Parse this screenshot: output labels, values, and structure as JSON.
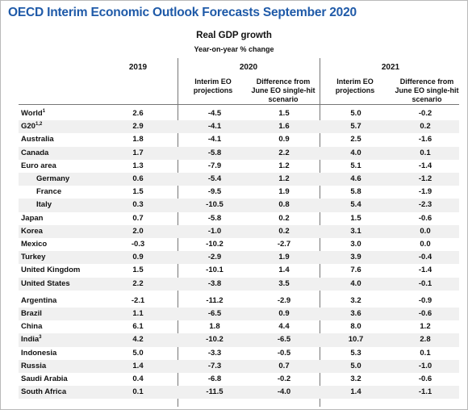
{
  "title": "OECD Interim Economic Outlook Forecasts September 2020",
  "table_title": "Real GDP growth",
  "table_subtitle": "Year-on-year % change",
  "years": [
    "2019",
    "2020",
    "2021"
  ],
  "columns": {
    "interim": "Interim EO projections",
    "difference": "Difference from June EO single-hit scenario"
  },
  "rows": [
    {
      "name": "World",
      "sup": "1",
      "v2019": "2.6",
      "i2020": "-4.5",
      "d2020": "1.5",
      "i2021": "5.0",
      "d2021": "-0.2"
    },
    {
      "name": "G20",
      "sup": "1,2",
      "v2019": "2.9",
      "i2020": "-4.1",
      "d2020": "1.6",
      "i2021": "5.7",
      "d2021": "0.2"
    },
    {
      "name": "Australia",
      "sup": "",
      "v2019": "1.8",
      "i2020": "-4.1",
      "d2020": "0.9",
      "i2021": "2.5",
      "d2021": "-1.6"
    },
    {
      "name": "Canada",
      "sup": "",
      "v2019": "1.7",
      "i2020": "-5.8",
      "d2020": "2.2",
      "i2021": "4.0",
      "d2021": "0.1"
    },
    {
      "name": "Euro area",
      "sup": "",
      "v2019": "1.3",
      "i2020": "-7.9",
      "d2020": "1.2",
      "i2021": "5.1",
      "d2021": "-1.4"
    },
    {
      "name": "Germany",
      "sup": "",
      "v2019": "0.6",
      "i2020": "-5.4",
      "d2020": "1.2",
      "i2021": "4.6",
      "d2021": "-1.2"
    },
    {
      "name": "France",
      "sup": "",
      "v2019": "1.5",
      "i2020": "-9.5",
      "d2020": "1.9",
      "i2021": "5.8",
      "d2021": "-1.9"
    },
    {
      "name": "Italy",
      "sup": "",
      "v2019": "0.3",
      "i2020": "-10.5",
      "d2020": "0.8",
      "i2021": "5.4",
      "d2021": "-2.3"
    },
    {
      "name": "Japan",
      "sup": "",
      "v2019": "0.7",
      "i2020": "-5.8",
      "d2020": "0.2",
      "i2021": "1.5",
      "d2021": "-0.6"
    },
    {
      "name": "Korea",
      "sup": "",
      "v2019": "2.0",
      "i2020": "-1.0",
      "d2020": "0.2",
      "i2021": "3.1",
      "d2021": "0.0"
    },
    {
      "name": "Mexico",
      "sup": "",
      "v2019": "-0.3",
      "i2020": "-10.2",
      "d2020": "-2.7",
      "i2021": "3.0",
      "d2021": "0.0"
    },
    {
      "name": "Turkey",
      "sup": "",
      "v2019": "0.9",
      "i2020": "-2.9",
      "d2020": "1.9",
      "i2021": "3.9",
      "d2021": "-0.4"
    },
    {
      "name": "United Kingdom",
      "sup": "",
      "v2019": "1.5",
      "i2020": "-10.1",
      "d2020": "1.4",
      "i2021": "7.6",
      "d2021": "-1.4"
    },
    {
      "name": "United States",
      "sup": "",
      "v2019": "2.2",
      "i2020": "-3.8",
      "d2020": "3.5",
      "i2021": "4.0",
      "d2021": "-0.1"
    },
    {
      "name": "Argentina",
      "sup": "",
      "v2019": "-2.1",
      "i2020": "-11.2",
      "d2020": "-2.9",
      "i2021": "3.2",
      "d2021": "-0.9"
    },
    {
      "name": "Brazil",
      "sup": "",
      "v2019": "1.1",
      "i2020": "-6.5",
      "d2020": "0.9",
      "i2021": "3.6",
      "d2021": "-0.6"
    },
    {
      "name": "China",
      "sup": "",
      "v2019": "6.1",
      "i2020": "1.8",
      "d2020": "4.4",
      "i2021": "8.0",
      "d2021": "1.2"
    },
    {
      "name": "India",
      "sup": "3",
      "v2019": "4.2",
      "i2020": "-10.2",
      "d2020": "-6.5",
      "i2021": "10.7",
      "d2021": "2.8"
    },
    {
      "name": "Indonesia",
      "sup": "",
      "v2019": "5.0",
      "i2020": "-3.3",
      "d2020": "-0.5",
      "i2021": "5.3",
      "d2021": "0.1"
    },
    {
      "name": "Russia",
      "sup": "",
      "v2019": "1.4",
      "i2020": "-7.3",
      "d2020": "0.7",
      "i2021": "5.0",
      "d2021": "-1.0"
    },
    {
      "name": "Saudi Arabia",
      "sup": "",
      "v2019": "0.4",
      "i2020": "-6.8",
      "d2020": "-0.2",
      "i2021": "3.2",
      "d2021": "-0.6"
    },
    {
      "name": "South Africa",
      "sup": "",
      "v2019": "0.1",
      "i2020": "-11.5",
      "d2020": "-4.0",
      "i2021": "1.4",
      "d2021": "-1.1"
    }
  ]
}
